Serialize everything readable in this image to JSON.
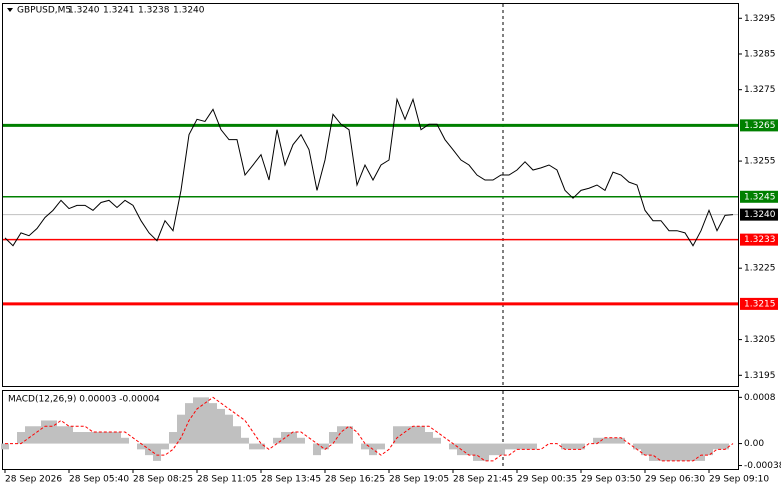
{
  "chart_data": [
    {
      "type": "line",
      "symbol": "GBPUSD,M5",
      "ohlc": [
        "1.3240",
        "1.3241",
        "1.3238",
        "1.3240"
      ],
      "categories": [
        "28 Sep 2026",
        null,
        null,
        null,
        null,
        null,
        null,
        null,
        "28 Sep 05:40",
        null,
        null,
        null,
        null,
        null,
        null,
        null,
        "28 Sep 08:25",
        null,
        null,
        null,
        null,
        null,
        null,
        null,
        "28 Sep 11:05",
        null,
        null,
        null,
        null,
        null,
        null,
        null,
        "28 Sep 13:45",
        null,
        null,
        null,
        null,
        null,
        null,
        null,
        "28 Sep 16:25",
        null,
        null,
        null,
        null,
        null,
        null,
        null,
        "28 Sep 19:05",
        null,
        null,
        null,
        null,
        null,
        null,
        null,
        "28 Sep 21:45",
        null,
        null,
        null,
        null,
        null,
        null,
        null,
        "29 Sep 00:35",
        null,
        null,
        null,
        null,
        null,
        null,
        null,
        "29 Sep 03:50",
        null,
        null,
        null,
        null,
        null,
        null,
        null,
        "29 Sep 06:30",
        null,
        null,
        null,
        null,
        null,
        null,
        null,
        "29 Sep 09:10",
        null,
        null,
        null
      ],
      "series": [
        {
          "name": "GBPUSD",
          "color": "#000000",
          "values": [
            1.32335,
            1.32313,
            1.32349,
            1.32341,
            1.32361,
            1.32392,
            1.32412,
            1.3244,
            1.32417,
            1.32426,
            1.32426,
            1.32412,
            1.32434,
            1.3244,
            1.3242,
            1.3244,
            1.32426,
            1.32383,
            1.32349,
            1.32327,
            1.32383,
            1.32355,
            1.32468,
            1.32624,
            1.32667,
            1.32661,
            1.32695,
            1.32638,
            1.3261,
            1.3261,
            1.32511,
            1.32539,
            1.32568,
            1.32497,
            1.32638,
            1.32539,
            1.32596,
            1.32624,
            1.32582,
            1.32468,
            1.32553,
            1.32681,
            1.32653,
            1.32638,
            1.32483,
            1.32539,
            1.32497,
            1.32539,
            1.32553,
            1.32723,
            1.32667,
            1.32723,
            1.32638,
            1.32653,
            1.32653,
            1.3261,
            1.32582,
            1.32553,
            1.32539,
            1.32511,
            1.32497,
            1.32497,
            1.32511,
            1.32511,
            1.32525,
            1.32548,
            1.32525,
            1.32531,
            1.32539,
            1.32525,
            1.32468,
            1.32446,
            1.32468,
            1.32474,
            1.32483,
            1.32468,
            1.32519,
            1.32511,
            1.32491,
            1.32483,
            1.32412,
            1.32383,
            1.32383,
            1.32355,
            1.32355,
            1.32349,
            1.32313,
            1.32355,
            1.32412,
            1.32355,
            1.32398,
            1.324
          ]
        }
      ],
      "ylim": [
        1.3192,
        1.3299
      ],
      "yticks": [
        1.3295,
        1.3285,
        1.3275,
        1.3255,
        1.3225,
        1.3205,
        1.3195
      ],
      "levels": [
        {
          "value": 1.3265,
          "color": "#008000",
          "style": "thick"
        },
        {
          "value": 1.3245,
          "color": "#008000",
          "style": "thin"
        },
        {
          "value": 1.3233,
          "color": "#ff0000",
          "style": "thin"
        },
        {
          "value": 1.3215,
          "color": "#ff0000",
          "style": "thick"
        }
      ],
      "last_price": {
        "value": 1.324,
        "label": "1.3240"
      }
    },
    {
      "type": "bar",
      "title": "MACD(12,26,9) 0.00003 -0.00004",
      "series": [
        {
          "name": "MACD",
          "color": "#c0c0c0",
          "values": [
            -0.0001,
            0,
            0.0002,
            0.0003,
            0.0003,
            0.0004,
            0.0004,
            0.0003,
            0.0003,
            0.0002,
            0.0002,
            0.0002,
            0.0002,
            0.0002,
            0.0002,
            0.0001,
            0,
            -0.0001,
            -0.0002,
            -0.0003,
            -0.0001,
            0.0002,
            0.0005,
            0.0007,
            0.0008,
            0.0008,
            0.0007,
            0.0006,
            0.0005,
            0.0003,
            0.0001,
            -0.0001,
            -0.0001,
            0,
            0.0001,
            0.0002,
            0.0002,
            0.0001,
            0,
            -0.0002,
            -0.0001,
            0.0002,
            0.0003,
            0.0003,
            0,
            -0.0001,
            -0.0002,
            -0.0001,
            0,
            0.0003,
            0.0003,
            0.0003,
            0.0003,
            0.0002,
            0.0001,
            0,
            -0.0001,
            -0.0002,
            -0.0002,
            -0.0003,
            -0.0003,
            -0.0002,
            -0.0002,
            -0.0001,
            -0.0001,
            -0.0001,
            -0.0001,
            0,
            0,
            0,
            -0.0001,
            -0.0001,
            -0.0001,
            0,
            0.0001,
            0.0001,
            0.0001,
            0.0001,
            0,
            -0.0001,
            -0.0002,
            -0.0003,
            -0.0003,
            -0.0003,
            -0.0003,
            -0.0003,
            -0.0003,
            -0.0003,
            -0.0002,
            -0.0001,
            -0.0001,
            0,
            0
          ]
        },
        {
          "name": "Signal",
          "color": "#ff0000",
          "line": "dashed",
          "values": [
            0,
            0,
            0,
            0.0001,
            0.0002,
            0.0003,
            0.0003,
            0.0004,
            0.0003,
            0.0003,
            0.0003,
            0.0002,
            0.0002,
            0.0002,
            0.0002,
            0.0002,
            0.0001,
            0,
            -0.0001,
            -0.0002,
            -0.0002,
            -0.0001,
            0.0001,
            0.0004,
            0.0006,
            0.0007,
            0.0008,
            0.0007,
            0.0006,
            0.0005,
            0.0004,
            0.0002,
            0,
            -0.0001,
            0,
            0.0001,
            0.0002,
            0.0002,
            0.0001,
            0,
            -0.0001,
            0,
            0.0002,
            0.0003,
            0.0002,
            0,
            -0.0001,
            -0.0002,
            -0.0001,
            0.0001,
            0.0002,
            0.0003,
            0.0003,
            0.0003,
            0.0002,
            0.0001,
            0,
            -0.0001,
            -0.0002,
            -0.0002,
            -0.0003,
            -0.0003,
            -0.0002,
            -0.0002,
            -0.0001,
            -0.0001,
            -0.0001,
            -0.0001,
            0,
            0,
            -0.0001,
            -0.0001,
            -0.0001,
            0,
            0,
            0.0001,
            0.0001,
            0.0001,
            0,
            -0.0001,
            -0.0002,
            -0.0002,
            -0.0003,
            -0.0003,
            -0.0003,
            -0.0003,
            -0.0003,
            -0.0002,
            -0.0002,
            -0.0001,
            -0.0001,
            0
          ]
        }
      ],
      "ylim": [
        -0.00044,
        0.00091
      ],
      "yticks": [
        0.0008,
        {
          "value": 0,
          "label": "0.00"
        },
        -0.00038
      ]
    }
  ]
}
